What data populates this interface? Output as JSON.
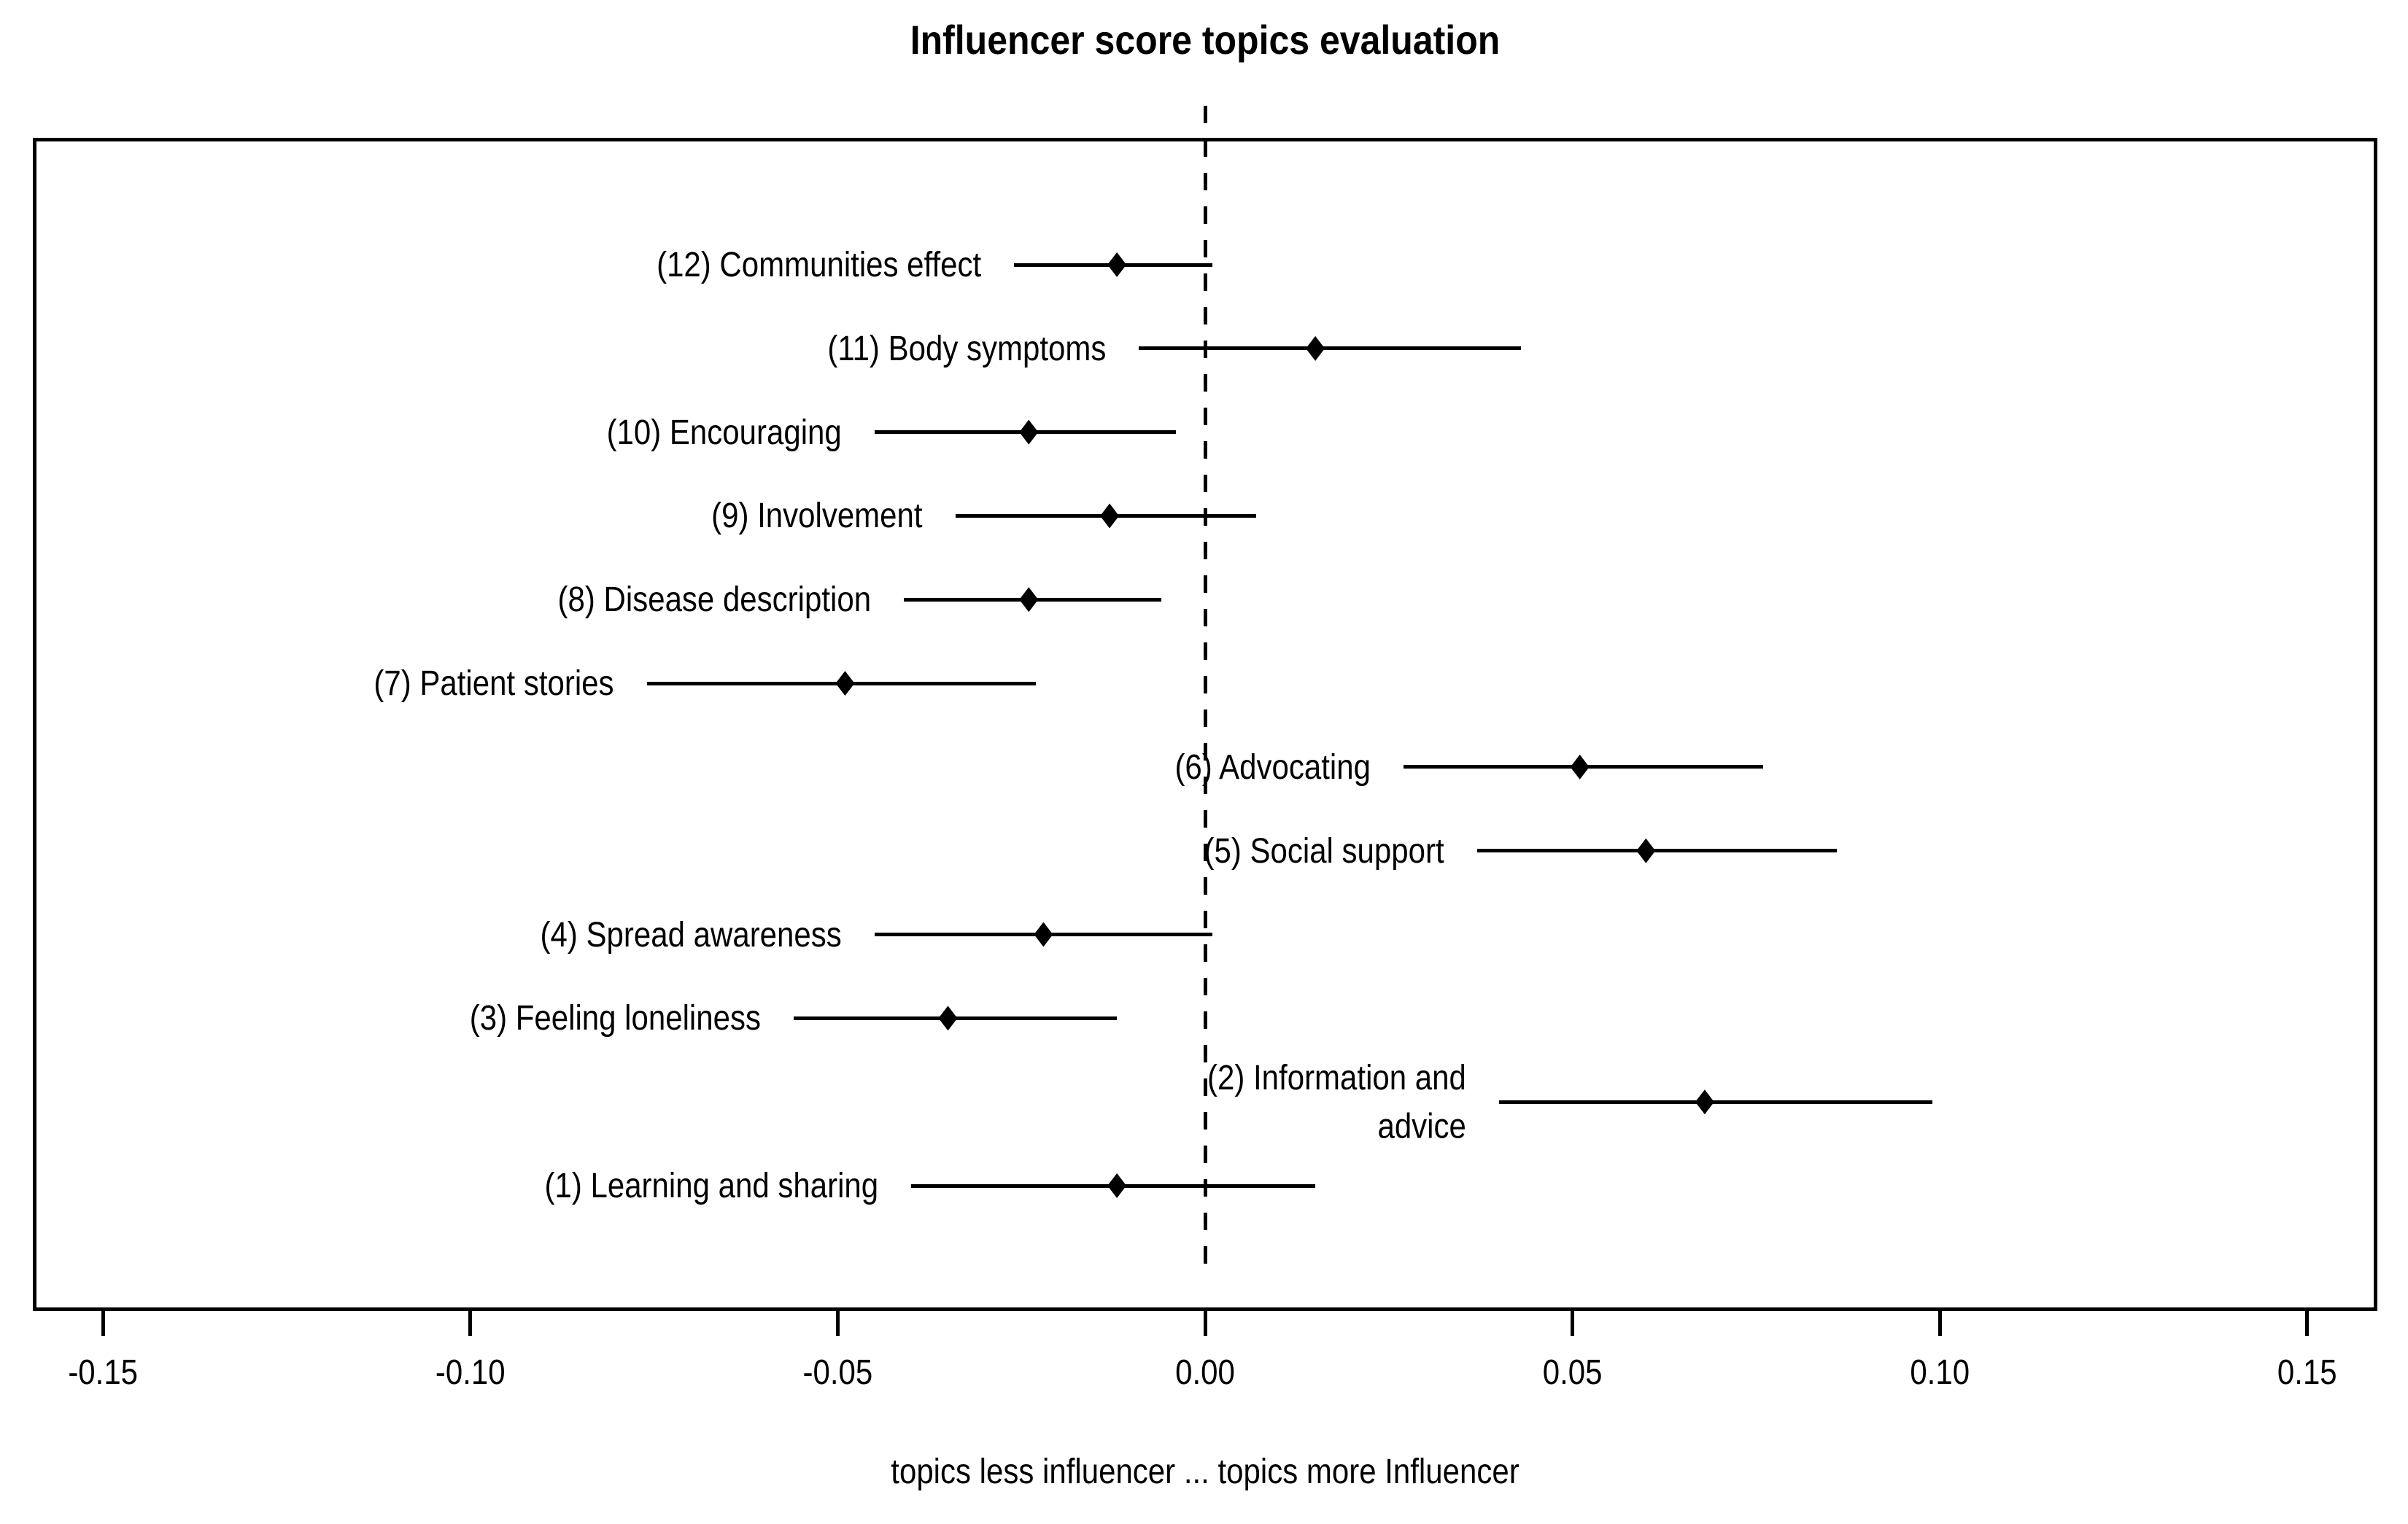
{
  "chart_data": {
    "type": "scatter",
    "subtype": "forest-plot-dot-interval",
    "title": "Influencer score topics evaluation",
    "xlabel": "topics less influencer ... topics more Influencer",
    "xlim": [
      -0.16,
      0.16
    ],
    "xticks": [
      -0.15,
      -0.1,
      -0.05,
      0.0,
      0.05,
      0.1,
      0.15
    ],
    "xtick_labels": [
      "-0.15",
      "-0.10",
      "-0.05",
      "0.00",
      "0.05",
      "0.10",
      "0.15"
    ],
    "grid": false,
    "legend": false,
    "marker": "filled-diamond",
    "zero_reference_line": {
      "x": 0.0,
      "style": "dashed"
    },
    "colors": {
      "foreground": "#000000",
      "background": "#ffffff"
    },
    "rows_top_to_bottom": [
      {
        "label": "(12) Communities effect",
        "estimate": -0.012,
        "ci_low": -0.026,
        "ci_high": 0.001
      },
      {
        "label": "(11) Body symptoms",
        "estimate": 0.015,
        "ci_low": -0.009,
        "ci_high": 0.043
      },
      {
        "label": "(10) Encouraging",
        "estimate": -0.024,
        "ci_low": -0.045,
        "ci_high": -0.004
      },
      {
        "label": "(9) Involvement",
        "estimate": -0.013,
        "ci_low": -0.034,
        "ci_high": 0.007
      },
      {
        "label": "(8) Disease description",
        "estimate": -0.024,
        "ci_low": -0.041,
        "ci_high": -0.006
      },
      {
        "label": "(7) Patient stories",
        "estimate": -0.049,
        "ci_low": -0.076,
        "ci_high": -0.023
      },
      {
        "label": "(6) Advocating",
        "estimate": 0.051,
        "ci_low": 0.027,
        "ci_high": 0.076
      },
      {
        "label": "(5) Social support",
        "estimate": 0.06,
        "ci_low": 0.037,
        "ci_high": 0.086
      },
      {
        "label": "(4) Spread awareness",
        "estimate": -0.022,
        "ci_low": -0.045,
        "ci_high": 0.001
      },
      {
        "label": "(3) Feeling loneliness",
        "estimate": -0.035,
        "ci_low": -0.056,
        "ci_high": -0.012
      },
      {
        "label": "(2) Information and\nadvice",
        "estimate": 0.068,
        "ci_low": 0.04,
        "ci_high": 0.099
      },
      {
        "label": "(1) Learning and sharing",
        "estimate": -0.012,
        "ci_low": -0.04,
        "ci_high": 0.015
      }
    ]
  }
}
